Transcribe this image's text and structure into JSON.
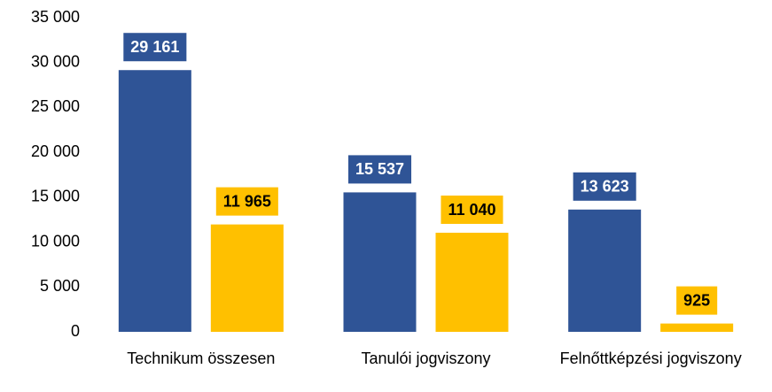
{
  "chart_data": {
    "type": "bar",
    "categories": [
      "Technikum összesen",
      "Tanulói jogviszony",
      "Felnőttképzési jogviszony"
    ],
    "series": [
      {
        "color": "#2F5496",
        "values": [
          29161,
          15537,
          13623
        ],
        "value_labels": [
          "29 161",
          "15 537",
          "13 623"
        ]
      },
      {
        "color": "#FFC000",
        "values": [
          11965,
          11040,
          925
        ],
        "value_labels": [
          "11 965",
          "11 040",
          "925"
        ]
      }
    ],
    "ylim": [
      0,
      35000
    ],
    "yticks": [
      {
        "value": 0,
        "label": "0"
      },
      {
        "value": 5000,
        "label": "5 000"
      },
      {
        "value": 10000,
        "label": "10 000"
      },
      {
        "value": 15000,
        "label": "15 000"
      },
      {
        "value": 20000,
        "label": "20 000"
      },
      {
        "value": 25000,
        "label": "25 000"
      },
      {
        "value": 30000,
        "label": "30 000"
      },
      {
        "value": 35000,
        "label": "35 000"
      }
    ],
    "grid": false
  }
}
